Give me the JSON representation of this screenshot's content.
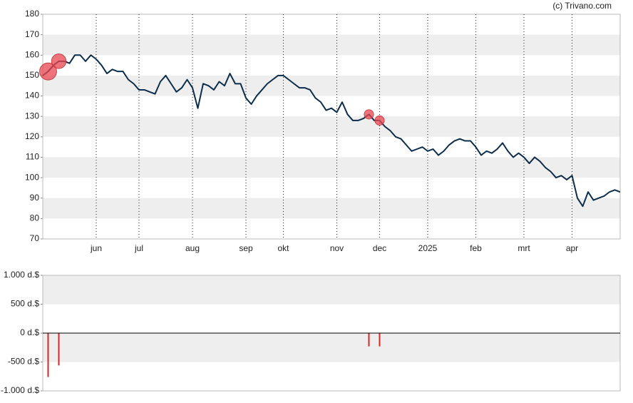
{
  "credit": "(c) Trivano.com",
  "chart_data": [
    {
      "type": "line",
      "categories": [
        null,
        null,
        null,
        null,
        null,
        null,
        null,
        null,
        null,
        null,
        "jun",
        null,
        null,
        null,
        null,
        null,
        null,
        null,
        "jul",
        null,
        null,
        null,
        null,
        null,
        null,
        null,
        null,
        null,
        "aug",
        null,
        null,
        null,
        null,
        null,
        null,
        null,
        null,
        null,
        "sep",
        null,
        null,
        null,
        null,
        null,
        null,
        "okt",
        null,
        null,
        null,
        null,
        null,
        null,
        null,
        null,
        null,
        "nov",
        null,
        null,
        null,
        null,
        null,
        null,
        null,
        "dec",
        null,
        null,
        null,
        null,
        null,
        null,
        null,
        null,
        "2025",
        null,
        null,
        null,
        null,
        null,
        null,
        null,
        null,
        "feb",
        null,
        null,
        null,
        null,
        null,
        null,
        null,
        null,
        "mrt",
        null,
        null,
        null,
        null,
        null,
        null,
        null,
        null,
        "apr",
        null,
        null,
        null,
        null,
        null,
        null,
        null,
        null,
        null
      ],
      "series": [
        {
          "color": "#0d2d4c",
          "values": [
            150,
            152,
            155,
            157,
            157,
            156,
            160,
            160,
            157,
            160,
            158,
            155,
            151,
            153,
            152,
            152,
            148,
            146,
            143,
            143,
            142,
            141,
            147,
            150,
            146,
            142,
            144,
            148,
            144,
            134,
            146,
            145,
            143,
            147,
            145,
            151,
            146,
            146,
            139,
            136,
            140,
            143,
            146,
            148,
            150,
            150,
            148,
            146,
            144,
            144,
            143,
            139,
            137,
            133,
            134,
            132,
            137,
            131,
            128,
            128,
            129,
            131,
            128,
            128,
            125,
            123,
            120,
            119,
            116,
            113,
            114,
            115,
            113,
            114,
            111,
            113,
            116,
            118,
            119,
            118,
            118,
            115,
            111,
            113,
            112,
            114,
            117,
            113,
            110,
            112,
            110,
            107,
            110,
            108,
            105,
            103,
            100,
            101,
            99,
            101,
            90,
            86,
            93,
            89,
            90,
            91,
            93,
            94,
            93
          ]
        }
      ],
      "ylim": [
        70,
        180
      ],
      "yticks": [
        70,
        80,
        90,
        100,
        110,
        120,
        130,
        140,
        150,
        160,
        170,
        180
      ]
    },
    {
      "type": "bar",
      "color": "#d62728",
      "values": [
        null,
        -760,
        null,
        -560,
        null,
        null,
        null,
        null,
        null,
        null,
        null,
        null,
        null,
        null,
        null,
        null,
        null,
        null,
        null,
        null,
        null,
        null,
        null,
        null,
        null,
        null,
        null,
        null,
        null,
        null,
        null,
        null,
        null,
        null,
        null,
        null,
        null,
        null,
        null,
        null,
        null,
        null,
        null,
        null,
        null,
        null,
        null,
        null,
        null,
        null,
        null,
        null,
        null,
        null,
        null,
        null,
        null,
        null,
        null,
        null,
        null,
        -230,
        null,
        -230,
        null,
        null,
        null,
        null,
        null,
        null,
        null,
        null,
        null,
        null,
        null,
        null,
        null,
        null,
        null,
        null,
        null,
        null,
        null,
        null,
        null,
        null,
        null,
        null,
        null,
        null,
        null,
        null,
        null,
        null,
        null,
        null,
        null,
        null,
        null,
        null,
        null,
        null,
        null,
        null,
        null,
        null,
        null,
        null,
        null
      ],
      "ylim": [
        -1000,
        1000
      ],
      "yticks": [
        {
          "value": -1000,
          "label": "-1.000 d.$"
        },
        {
          "value": -500,
          "label": "-500 d.$"
        },
        {
          "value": 0,
          "label": "0 d.$"
        },
        {
          "value": 500,
          "label": "500 d.$"
        },
        {
          "value": 1000,
          "label": "1.000 d.$"
        }
      ]
    }
  ]
}
